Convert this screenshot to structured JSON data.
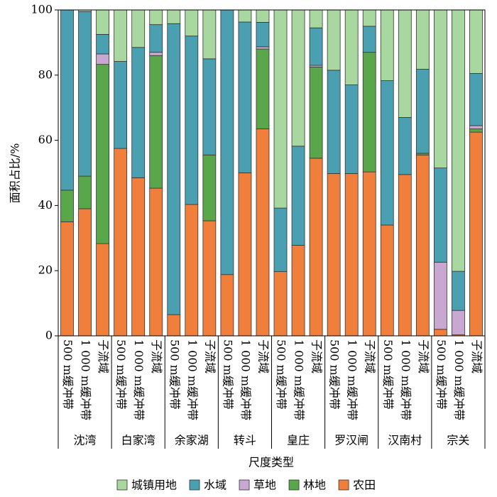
{
  "chart_data": {
    "type": "stacked_bar",
    "ylabel": "面积占比/%",
    "xlabel": "尺度类型",
    "groups": [
      "沈湾",
      "白家湾",
      "余家湖",
      "转斗",
      "皇庄",
      "罗汉闸",
      "汉南村",
      "宗关"
    ],
    "categories": [
      "500 m缓冲带",
      "1 000 m缓冲带",
      "子流域",
      "500 m缓冲带",
      "1 000 m缓冲带",
      "子流域",
      "500 m缓冲带",
      "1 000 m缓冲带",
      "子流域",
      "500 m缓冲带",
      "1 000 m缓冲带",
      "子流域",
      "500 m缓冲带",
      "1 000 m缓冲带",
      "子流域",
      "500 m缓冲带",
      "1 000 m缓冲带",
      "子流域",
      "500 m缓冲带",
      "1 000 m缓冲带",
      "子流域",
      "500 m缓冲带",
      "1 000 m缓冲带",
      "子流域"
    ],
    "series": [
      {
        "name": "农田",
        "color": "#f07f3c",
        "values": [
          35,
          39,
          28.3,
          57.5,
          48.5,
          45.3,
          6.5,
          40.3,
          35.3,
          18.8,
          50,
          63.5,
          19.7,
          27.8,
          54.5,
          49.8,
          49.8,
          50.3,
          34,
          49.5,
          55.5,
          2,
          0.3,
          62.5
        ]
      },
      {
        "name": "林地",
        "color": "#5aa64a",
        "values": [
          9.7,
          10,
          55,
          0,
          0,
          40.7,
          0,
          0,
          20.2,
          0,
          0,
          24.5,
          0,
          0,
          28,
          0,
          0,
          36.7,
          0,
          0,
          0.5,
          0,
          0,
          1
        ]
      },
      {
        "name": "草地",
        "color": "#c8a8d0",
        "values": [
          0,
          0,
          3.2,
          0,
          0,
          1,
          0,
          0,
          0,
          0,
          0,
          0.7,
          0,
          0,
          0.5,
          0,
          0,
          0,
          0,
          0,
          0,
          20.6,
          7.5,
          1
        ]
      },
      {
        "name": "水域",
        "color": "#4aa0b0",
        "values": [
          55.3,
          50.5,
          6,
          26.7,
          40,
          8.5,
          89.3,
          51.7,
          29.5,
          81.2,
          46.3,
          7.5,
          19.5,
          30.4,
          11.5,
          31.7,
          27.2,
          8,
          44.3,
          17.5,
          25.8,
          28.9,
          12,
          16
        ]
      },
      {
        "name": "城镇用地",
        "color": "#a8d8a0",
        "values": [
          0,
          0.5,
          7.5,
          15.8,
          11.5,
          4.5,
          4.2,
          8,
          15,
          0,
          3.7,
          3.8,
          60.8,
          41.8,
          5.5,
          18.5,
          23,
          5,
          21.7,
          33,
          18.2,
          48.5,
          80.2,
          19.5
        ]
      }
    ],
    "ylim": [
      0,
      100
    ],
    "yticks": [
      0,
      20,
      40,
      60,
      80,
      100
    ]
  }
}
